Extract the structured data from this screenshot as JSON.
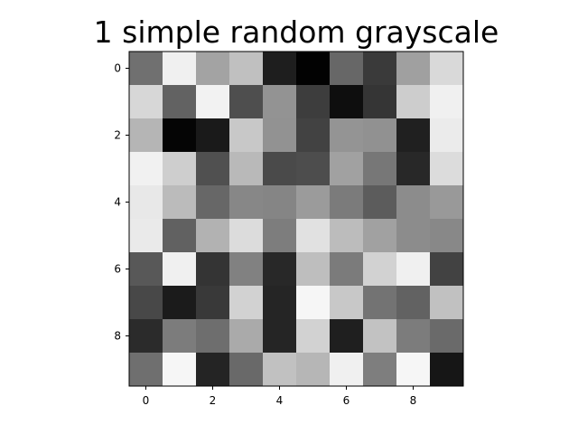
{
  "chart_data": {
    "type": "heatmap",
    "title": "1 simple random grayscale",
    "xlabel": "",
    "ylabel": "",
    "colormap": "gray",
    "value_range": [
      0,
      255
    ],
    "x_ticks": [
      0,
      2,
      4,
      6,
      8
    ],
    "y_ticks": [
      0,
      2,
      4,
      6,
      8
    ],
    "grid": false,
    "rows": 10,
    "cols": 10,
    "values": [
      [
        112,
        240,
        163,
        192,
        30,
        2,
        103,
        58,
        160,
        217
      ],
      [
        215,
        98,
        242,
        78,
        147,
        61,
        14,
        53,
        205,
        240
      ],
      [
        181,
        5,
        26,
        200,
        146,
        66,
        148,
        145,
        32,
        235
      ],
      [
        241,
        206,
        80,
        185,
        74,
        77,
        161,
        119,
        40,
        220
      ],
      [
        232,
        187,
        103,
        135,
        133,
        155,
        123,
        92,
        140,
        153
      ],
      [
        234,
        97,
        178,
        220,
        125,
        225,
        188,
        161,
        140,
        136
      ],
      [
        88,
        240,
        52,
        129,
        40,
        190,
        123,
        210,
        240,
        66
      ],
      [
        72,
        27,
        57,
        210,
        37,
        246,
        200,
        115,
        98,
        193
      ],
      [
        43,
        124,
        110,
        170,
        37,
        210,
        31,
        194,
        124,
        106
      ],
      [
        111,
        246,
        36,
        105,
        193,
        182,
        240,
        126,
        246,
        22
      ]
    ]
  }
}
